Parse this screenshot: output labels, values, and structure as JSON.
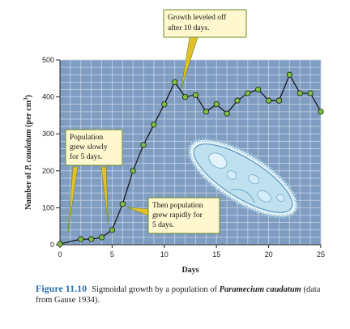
{
  "chart_data": {
    "type": "line",
    "xlabel": "Days",
    "ylabel_prefix": "Number of ",
    "ylabel_species": "P. caudatum",
    "ylabel_suffix": " (per cm",
    "ylabel_sup": "3",
    "ylabel_close": ")",
    "xlim": [
      0,
      25
    ],
    "ylim": [
      0,
      500
    ],
    "xticks": [
      0,
      5,
      10,
      15,
      20,
      25
    ],
    "yticks": [
      0,
      100,
      200,
      300,
      400,
      500
    ],
    "grid": true,
    "series": [
      {
        "x": [
          0,
          2,
          3,
          4,
          5,
          6,
          7,
          8,
          9,
          10,
          11,
          12,
          13,
          14,
          15,
          16,
          17,
          18,
          19,
          20,
          21,
          22,
          23,
          24,
          25
        ],
        "y": [
          2,
          15,
          15,
          20,
          40,
          110,
          200,
          270,
          325,
          380,
          440,
          400,
          405,
          360,
          380,
          355,
          390,
          410,
          420,
          390,
          390,
          460,
          410,
          410,
          360
        ],
        "color": "#111111",
        "marker_color": "#7dc242"
      }
    ],
    "annotations": [
      {
        "lines": [
          "Growth leveled off",
          "after 10 days."
        ]
      },
      {
        "lines": [
          "Population",
          "grew slowly",
          "for 5 days."
        ]
      },
      {
        "lines": [
          "Then population",
          "grew rapidly for",
          "5 days."
        ]
      }
    ]
  },
  "caption": {
    "figure_number": "Figure 11.10",
    "text_before": "Sigmoidal growth by a population of ",
    "species": "Paramecium caudatum",
    "text_after": " (data from Gause 1934)."
  },
  "colors": {
    "plot_background": "#7f9dc1",
    "grid": "#c7d4e6",
    "callout_fill": "#fff8cf",
    "callout_border": "#6a8a2a",
    "callout_pointer": "#e3c02a",
    "caption_accent": "#2a6fb0"
  }
}
